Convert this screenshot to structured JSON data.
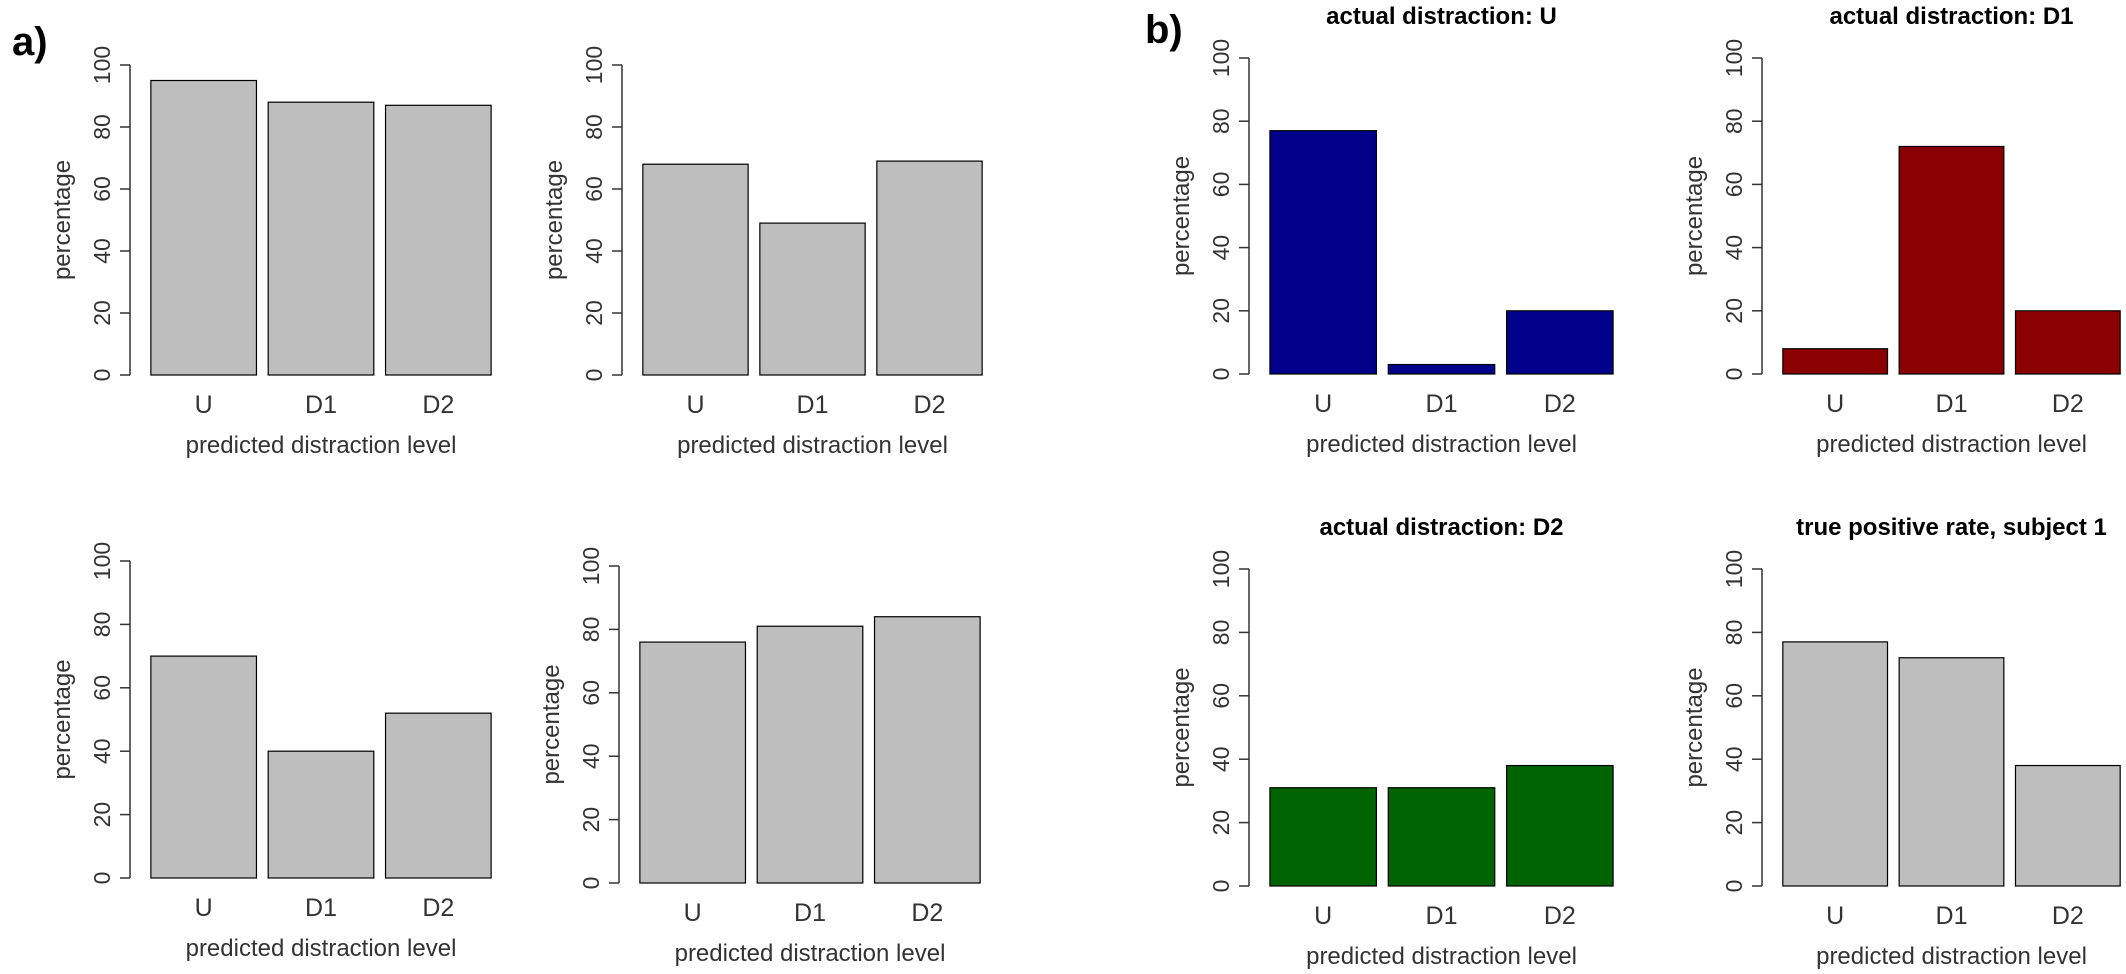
{
  "panels": {
    "a": {
      "label": "a)"
    },
    "b": {
      "label": "b)"
    }
  },
  "colors": {
    "gray": "#bebebe",
    "blue": "#00008b",
    "red": "#8b0000",
    "green": "#006400",
    "stroke": "#000000"
  },
  "chart_data": [
    {
      "panel": "a",
      "type": "bar",
      "title": "",
      "categories": [
        "U",
        "D1",
        "D2"
      ],
      "values": [
        95,
        88,
        87
      ],
      "color": "gray",
      "xlabel": "predicted distraction level",
      "ylabel": "percentage",
      "ylim": [
        0,
        100
      ],
      "yticks": [
        0,
        20,
        40,
        60,
        80,
        100
      ]
    },
    {
      "panel": "a",
      "type": "bar",
      "title": "",
      "categories": [
        "U",
        "D1",
        "D2"
      ],
      "values": [
        68,
        49,
        69
      ],
      "color": "gray",
      "xlabel": "predicted distraction level",
      "ylabel": "percentage",
      "ylim": [
        0,
        100
      ],
      "yticks": [
        0,
        20,
        40,
        60,
        80,
        100
      ]
    },
    {
      "panel": "a",
      "type": "bar",
      "title": "",
      "categories": [
        "U",
        "D1",
        "D2"
      ],
      "values": [
        70,
        40,
        52
      ],
      "color": "gray",
      "xlabel": "predicted distraction level",
      "ylabel": "percentage",
      "ylim": [
        0,
        100
      ],
      "yticks": [
        0,
        20,
        40,
        60,
        80,
        100
      ]
    },
    {
      "panel": "a",
      "type": "bar",
      "title": "",
      "categories": [
        "U",
        "D1",
        "D2"
      ],
      "values": [
        76,
        81,
        84
      ],
      "color": "gray",
      "xlabel": "predicted distraction level",
      "ylabel": "percentage",
      "ylim": [
        0,
        100
      ],
      "yticks": [
        0,
        20,
        40,
        60,
        80,
        100
      ]
    },
    {
      "panel": "b",
      "type": "bar",
      "title": "actual distraction: U",
      "categories": [
        "U",
        "D1",
        "D2"
      ],
      "values": [
        77,
        3,
        20
      ],
      "color": "blue",
      "xlabel": "predicted distraction level",
      "ylabel": "percentage",
      "ylim": [
        0,
        100
      ],
      "yticks": [
        0,
        20,
        40,
        60,
        80,
        100
      ]
    },
    {
      "panel": "b",
      "type": "bar",
      "title": "actual distraction: D1",
      "categories": [
        "U",
        "D1",
        "D2"
      ],
      "values": [
        8,
        72,
        20
      ],
      "color": "red",
      "xlabel": "predicted distraction level",
      "ylabel": "percentage",
      "ylim": [
        0,
        100
      ],
      "yticks": [
        0,
        20,
        40,
        60,
        80,
        100
      ]
    },
    {
      "panel": "b",
      "type": "bar",
      "title": "actual distraction: D2",
      "categories": [
        "U",
        "D1",
        "D2"
      ],
      "values": [
        31,
        31,
        38
      ],
      "color": "green",
      "xlabel": "predicted distraction level",
      "ylabel": "percentage",
      "ylim": [
        0,
        100
      ],
      "yticks": [
        0,
        20,
        40,
        60,
        80,
        100
      ]
    },
    {
      "panel": "b",
      "type": "bar",
      "title": "true positive rate, subject 1",
      "categories": [
        "U",
        "D1",
        "D2"
      ],
      "values": [
        77,
        72,
        38
      ],
      "color": "gray",
      "xlabel": "predicted distraction level",
      "ylabel": "percentage",
      "ylim": [
        0,
        100
      ],
      "yticks": [
        0,
        20,
        40,
        60,
        80,
        100
      ]
    }
  ]
}
